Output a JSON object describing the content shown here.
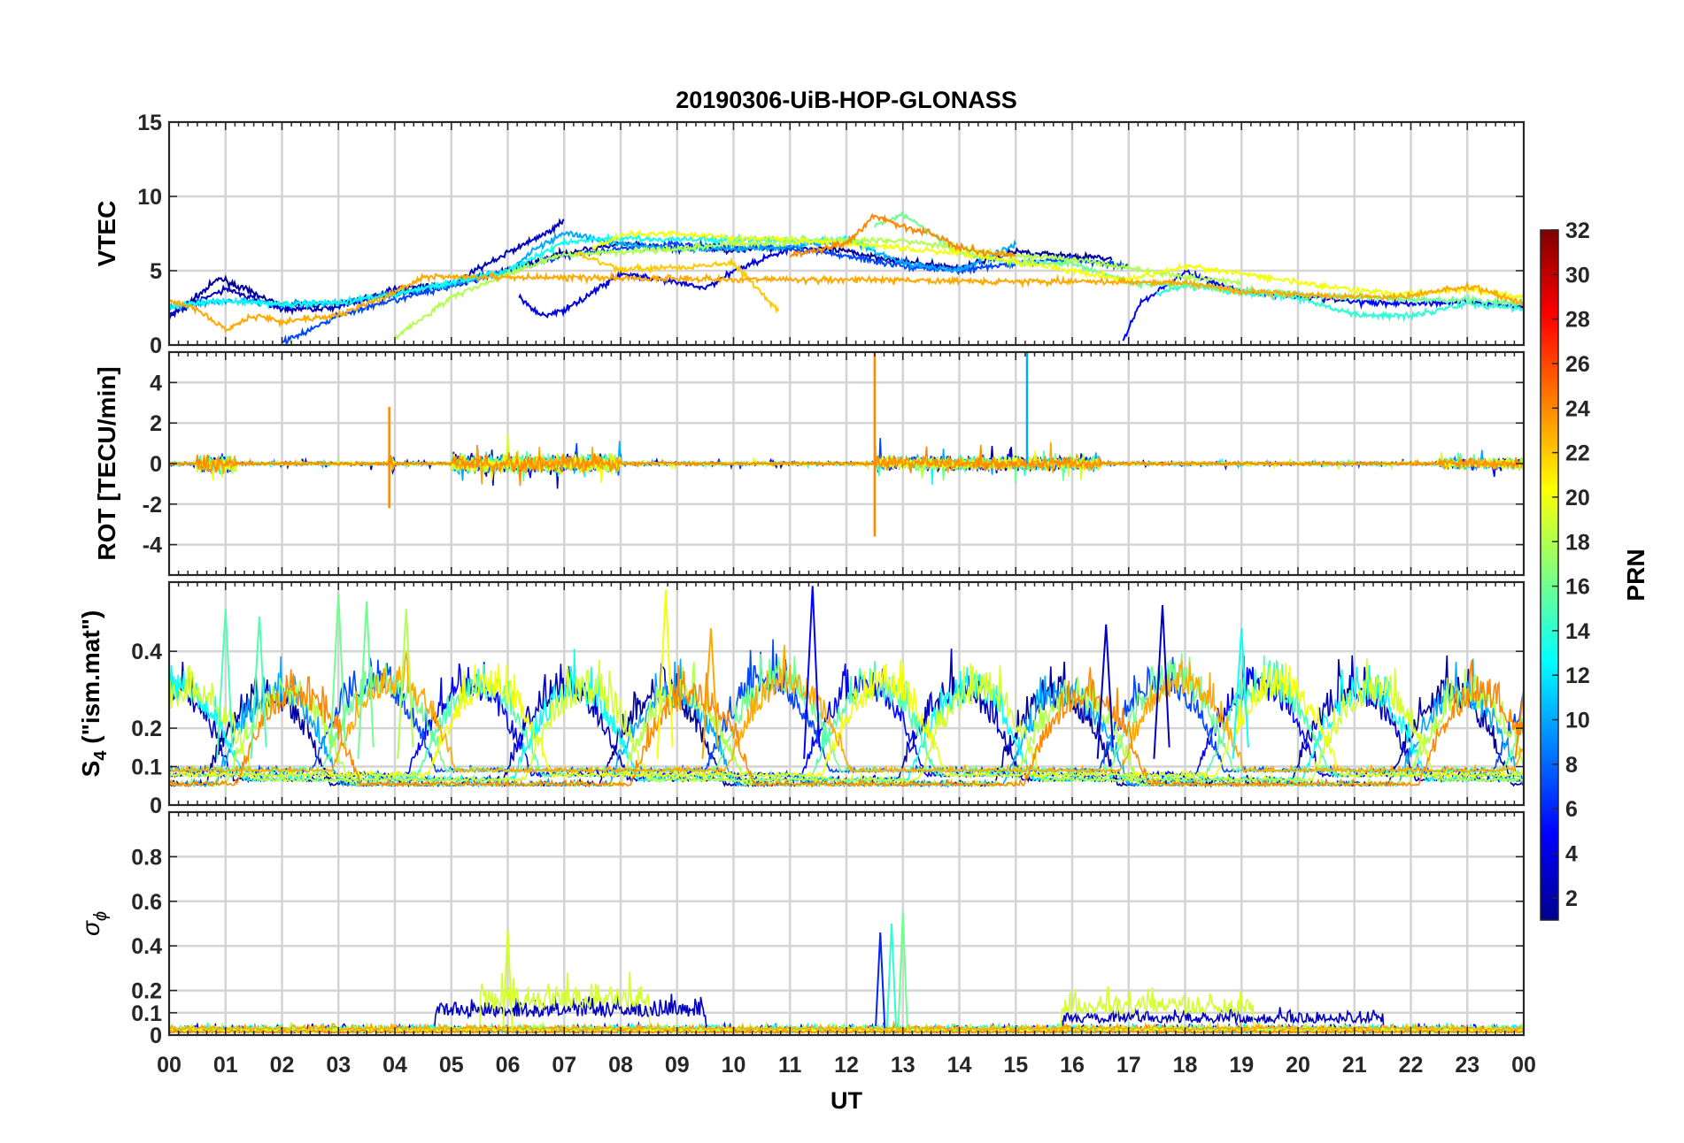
{
  "title": "20190306-UiB-HOP-GLONASS",
  "xlabel": "UT",
  "x_tick_labels": [
    "00",
    "01",
    "02",
    "03",
    "04",
    "05",
    "06",
    "07",
    "08",
    "09",
    "10",
    "11",
    "12",
    "13",
    "14",
    "15",
    "16",
    "17",
    "18",
    "19",
    "20",
    "21",
    "22",
    "23",
    "00"
  ],
  "colorbar": {
    "label": "PRN",
    "range": [
      1,
      32
    ],
    "tick_labels": [
      "2",
      "4",
      "6",
      "8",
      "10",
      "12",
      "14",
      "16",
      "18",
      "20",
      "22",
      "24",
      "26",
      "28",
      "30",
      "32"
    ],
    "colormap": "jet"
  },
  "panels": [
    {
      "id": "vtec",
      "ylabel": "VTEC",
      "ylim": [
        0,
        15
      ],
      "tick_labels": [
        "0",
        "5",
        "10",
        "15"
      ]
    },
    {
      "id": "rot",
      "ylabel": "ROT [TECU/min]",
      "ylim": [
        -5.5,
        5.5
      ],
      "tick_labels": [
        "-4",
        "-2",
        "0",
        "2",
        "4"
      ]
    },
    {
      "id": "s4",
      "ylabel_main": "S",
      "ylabel_sub": "4",
      "ylabel_rest": " (\"ism.mat\")",
      "ylim": [
        0,
        0.58
      ],
      "tick_labels": [
        "0",
        "0.1",
        "0.2",
        "0.4"
      ]
    },
    {
      "id": "sigma",
      "ylabel_main": "σ",
      "ylabel_sub": "ϕ",
      "ylim": [
        0,
        1.0
      ],
      "tick_labels": [
        "0",
        "0.1",
        "0.2",
        "0.4",
        "0.6",
        "0.8"
      ]
    }
  ],
  "chart_data": {
    "type": "line",
    "title": "20190306-UiB-HOP-GLONASS",
    "xlabel": "UT",
    "xlim_hours": [
      0,
      24
    ],
    "grid": true,
    "colorbar_label": "PRN",
    "colorbar_range": [
      1,
      32
    ],
    "panels": [
      {
        "ylabel": "VTEC",
        "ylim": [
          0,
          15
        ],
        "yticks": [
          0,
          5,
          10,
          15
        ],
        "series": [
          {
            "prn": 2,
            "x": [
              0.0,
              0.9,
              2.0,
              3.0,
              4.0,
              5.0,
              6.0,
              7.0,
              8.0,
              9.0,
              10.0,
              11.0,
              12.0,
              13.0,
              14.0,
              15.0,
              16.0,
              16.7
            ],
            "y": [
              1.8,
              4.5,
              2.6,
              2.8,
              3.5,
              4.0,
              5.0,
              6.2,
              6.8,
              6.5,
              6.4,
              6.6,
              6.3,
              5.6,
              5.2,
              6.3,
              6.0,
              5.8
            ]
          },
          {
            "prn": 3,
            "x": [
              0.0,
              1.0,
              2.0,
              3.0,
              4.0,
              5.0,
              6.0,
              6.8,
              7.0
            ],
            "y": [
              2.0,
              3.8,
              2.4,
              2.5,
              3.8,
              4.1,
              6.2,
              7.8,
              8.4
            ]
          },
          {
            "prn": 4,
            "x": [
              6.2,
              6.6,
              7.0,
              8.0,
              9.0,
              9.5,
              10.0,
              11.0
            ],
            "y": [
              3.2,
              2.0,
              2.3,
              4.8,
              4.2,
              3.8,
              5.0,
              6.5
            ]
          },
          {
            "prn": 5,
            "x": [
              16.9,
              17.2,
              18.0,
              19.0,
              20.0,
              21.0,
              22.0,
              23.0,
              24.0
            ],
            "y": [
              0.2,
              2.8,
              4.9,
              3.6,
              3.3,
              2.9,
              2.8,
              2.9,
              2.6
            ]
          },
          {
            "prn": 7,
            "x": [
              2.0,
              2.5,
              3.0,
              4.0,
              5.0,
              6.0,
              7.0,
              8.0,
              9.0,
              10.0,
              11.0,
              12.0,
              13.0,
              14.0,
              15.0,
              16.0,
              17.0
            ],
            "y": [
              0.2,
              1.0,
              2.0,
              3.0,
              4.0,
              5.0,
              6.0,
              6.5,
              6.8,
              6.6,
              6.5,
              6.0,
              5.3,
              5.0,
              5.5,
              5.8,
              5.3
            ]
          },
          {
            "prn": 10,
            "x": [
              0.0,
              1.0,
              2.0,
              3.0,
              4.0,
              5.0,
              6.0,
              6.5,
              7.0,
              8.0,
              9.0,
              10.0,
              11.0,
              12.0,
              13.0,
              14.0,
              15.0
            ],
            "y": [
              2.5,
              3.0,
              2.8,
              2.8,
              3.5,
              4.1,
              5.0,
              6.5,
              7.5,
              6.8,
              6.4,
              6.5,
              6.6,
              7.1,
              5.5,
              5.0,
              6.8
            ]
          },
          {
            "prn": 13,
            "x": [
              0.0,
              1.0,
              2.0,
              3.0,
              4.0,
              5.0,
              6.0,
              7.0,
              8.0,
              9.0,
              10.0,
              11.0,
              12.0,
              12.5
            ],
            "y": [
              2.6,
              3.0,
              2.7,
              2.9,
              3.4,
              4.2,
              5.0,
              6.9,
              7.2,
              7.1,
              7.1,
              7.0,
              7.1,
              6.5
            ]
          },
          {
            "prn": 14,
            "x": [
              17.5,
              18.0,
              19.0,
              20.0,
              21.0,
              22.0,
              23.0,
              24.0
            ],
            "y": [
              3.5,
              4.0,
              3.5,
              3.2,
              2.0,
              2.0,
              2.8,
              2.4
            ]
          },
          {
            "prn": 16,
            "x": [
              12.5,
              13.0,
              13.5,
              14.0,
              15.0,
              16.0,
              17.0,
              18.0,
              19.0,
              20.0,
              21.0,
              22.0,
              23.0,
              24.0
            ],
            "y": [
              8.0,
              8.8,
              7.5,
              6.2,
              5.6,
              5.5,
              4.2,
              4.0,
              3.7,
              3.4,
              3.2,
              3.1,
              3.0,
              2.8
            ]
          },
          {
            "prn": 18,
            "x": [
              4.0,
              5.0,
              6.0,
              7.0,
              8.0,
              9.0,
              10.0,
              11.0,
              12.0,
              13.0,
              14.0,
              15.0,
              16.0,
              17.0,
              18.0,
              19.0
            ],
            "y": [
              0.5,
              3.2,
              4.8,
              6.1,
              6.3,
              6.5,
              6.8,
              6.9,
              7.1,
              7.0,
              6.5,
              6.0,
              5.8,
              5.2,
              4.6,
              4.2
            ]
          },
          {
            "prn": 20,
            "x": [
              7.5,
              8.0,
              9.0,
              10.0,
              11.0,
              12.0,
              13.0,
              14.0,
              15.0,
              16.0,
              17.0,
              18.0,
              19.0,
              20.0,
              21.0,
              22.0,
              23.0,
              24.0
            ],
            "y": [
              6.5,
              7.4,
              7.5,
              7.2,
              7.1,
              6.8,
              6.5,
              6.2,
              5.6,
              5.0,
              4.4,
              5.3,
              4.8,
              4.2,
              3.7,
              3.4,
              3.8,
              3.2
            ]
          },
          {
            "prn": 22,
            "x": [
              7.2,
              8.0,
              9.0,
              10.0,
              10.8
            ],
            "y": [
              6.2,
              5.1,
              5.2,
              5.5,
              2.3
            ]
          },
          {
            "prn": 23,
            "x": [
              0.0,
              0.5,
              1.0,
              1.5,
              2.0,
              3.0,
              4.0,
              4.5,
              18.0,
              19.0,
              20.0,
              21.0,
              22.0,
              23.0,
              24.0
            ],
            "y": [
              3.0,
              2.4,
              1.0,
              2.0,
              1.6,
              2.0,
              3.5,
              4.6,
              4.2,
              3.6,
              3.4,
              3.2,
              3.3,
              4.0,
              2.8
            ]
          },
          {
            "prn": 24,
            "x": [
              11.0,
              11.5,
              12.0,
              12.5,
              13.0,
              13.5,
              14.0,
              15.0
            ],
            "y": [
              6.0,
              6.4,
              6.9,
              8.7,
              8.0,
              7.5,
              6.5,
              6.0
            ]
          }
        ]
      },
      {
        "ylabel": "ROT [TECU/min]",
        "ylim": [
          -5.5,
          5.5
        ],
        "yticks": [
          -4,
          -2,
          0,
          2,
          4
        ],
        "activity": [
          {
            "x_hours": [
              0.5,
              1.2
            ],
            "amplitude": 1.5
          },
          {
            "x_hours": [
              3.9,
              4.0
            ],
            "range": [
              -2.2,
              2.8
            ],
            "prn": 24
          },
          {
            "x_hours": [
              5.0,
              8.0
            ],
            "amplitude": 1.6
          },
          {
            "x_hours": [
              12.5,
              16.5
            ],
            "range": [
              -3.6,
              5.5
            ]
          },
          {
            "x_hours": [
              15.2,
              15.3
            ],
            "peak": 5.5,
            "prn": 10
          },
          {
            "x_hours": [
              22.5,
              24.0
            ],
            "amplitude": 0.9
          }
        ],
        "baseline": 0
      },
      {
        "ylabel": "S4 (\"ism.mat\")",
        "ylim": [
          0,
          0.58
        ],
        "yticks": [
          0,
          0.1,
          0.2,
          0.4
        ],
        "baseline_range": [
          0.05,
          0.1
        ],
        "peaks": [
          {
            "x": 1.0,
            "y": 0.51,
            "prn": 15
          },
          {
            "x": 1.6,
            "y": 0.49,
            "prn": 15
          },
          {
            "x": 3.0,
            "y": 0.55,
            "prn": 16
          },
          {
            "x": 3.5,
            "y": 0.53,
            "prn": 16
          },
          {
            "x": 4.2,
            "y": 0.51,
            "prn": 18
          },
          {
            "x": 8.8,
            "y": 0.56,
            "prn": 20
          },
          {
            "x": 9.6,
            "y": 0.46,
            "prn": 23
          },
          {
            "x": 11.4,
            "y": 0.57,
            "prn": 5
          },
          {
            "x": 16.6,
            "y": 0.47,
            "prn": 3
          },
          {
            "x": 17.6,
            "y": 0.52,
            "prn": 3
          },
          {
            "x": 19.0,
            "y": 0.46,
            "prn": 13
          },
          {
            "x": 24.0,
            "y": 0.3,
            "prn": 24
          }
        ]
      },
      {
        "ylabel": "σϕ",
        "ylim": [
          0,
          1.0
        ],
        "yticks": [
          0,
          0.1,
          0.2,
          0.4,
          0.6,
          0.8
        ],
        "baseline_range": [
          0.0,
          0.08
        ],
        "active_bands": [
          {
            "x_hours": [
              4.7,
              9.5
            ],
            "level": 0.15,
            "prn": 3
          },
          {
            "x_hours": [
              5.5,
              8.5
            ],
            "level": 0.22,
            "prn": 19
          },
          {
            "x_hours": [
              15.8,
              19.2
            ],
            "level": 0.17,
            "prn": 19
          },
          {
            "x_hours": [
              15.8,
              21.5
            ],
            "level": 0.1,
            "prn": 3
          }
        ],
        "peaks": [
          {
            "x": 6.0,
            "y": 0.47,
            "prn": 19
          },
          {
            "x": 12.6,
            "y": 0.46,
            "prn": 6
          },
          {
            "x": 12.8,
            "y": 0.5,
            "prn": 14
          },
          {
            "x": 13.0,
            "y": 0.55,
            "prn": 16
          }
        ]
      }
    ]
  }
}
